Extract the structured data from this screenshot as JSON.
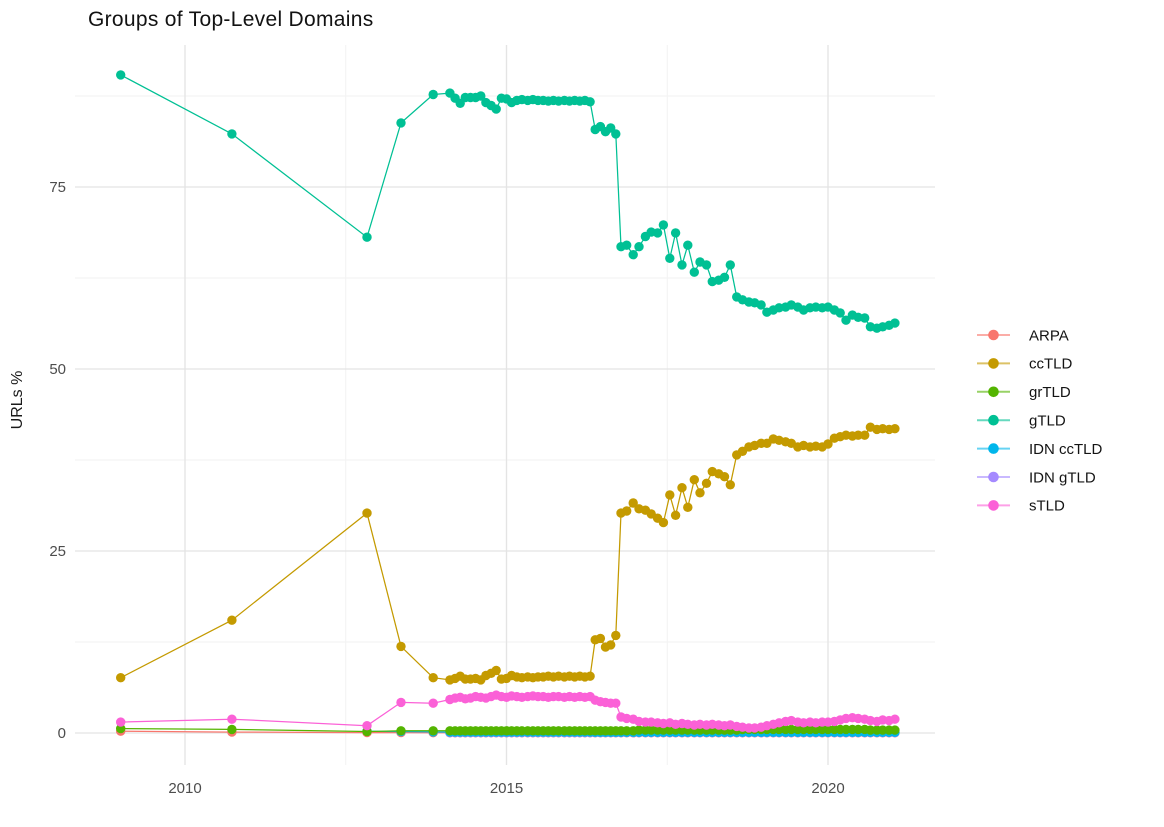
{
  "title": "Groups of Top-Level Domains",
  "y_axis": {
    "label": "URLs %",
    "ticks": [
      {
        "value": 0,
        "label": "0"
      },
      {
        "value": 25,
        "label": "25"
      },
      {
        "value": 50,
        "label": "50"
      },
      {
        "value": 75,
        "label": "75"
      }
    ],
    "minor": [
      12.5,
      37.5,
      62.5,
      87.5
    ]
  },
  "x_axis": {
    "ticks": [
      {
        "value": 2010,
        "label": "2010"
      },
      {
        "value": 2015,
        "label": "2015"
      },
      {
        "value": 2020,
        "label": "2020"
      }
    ],
    "minor": [
      2012.5,
      2017.5
    ]
  },
  "legend": {
    "position": "right",
    "items": [
      {
        "label": "ARPA",
        "color": "#F8766D"
      },
      {
        "label": "ccTLD",
        "color": "#C49A00"
      },
      {
        "label": "grTLD",
        "color": "#53B400"
      },
      {
        "label": "gTLD",
        "color": "#00C094"
      },
      {
        "label": "IDN ccTLD",
        "color": "#00B6EB"
      },
      {
        "label": "IDN gTLD",
        "color": "#A58AFF"
      },
      {
        "label": "sTLD",
        "color": "#FB61D7"
      }
    ]
  },
  "chart_data": {
    "type": "line",
    "title": "Groups of Top-Level Domains",
    "xlabel": "",
    "ylabel": "URLs %",
    "xlim": [
      2008.3,
      2021.7
    ],
    "ylim": [
      -4.5,
      94.5
    ],
    "grid": true,
    "legend_position": "right",
    "marker": "point",
    "x": [
      2009.0,
      2010.73,
      2012.83,
      2013.36,
      2013.86,
      2014.12,
      2014.2,
      2014.28,
      2014.36,
      2014.44,
      2014.52,
      2014.6,
      2014.68,
      2014.76,
      2014.84,
      2014.92,
      2015.0,
      2015.08,
      2015.16,
      2015.24,
      2015.33,
      2015.41,
      2015.49,
      2015.57,
      2015.65,
      2015.73,
      2015.81,
      2015.9,
      2015.98,
      2016.06,
      2016.14,
      2016.22,
      2016.3,
      2016.38,
      2016.46,
      2016.54,
      2016.62,
      2016.7,
      2016.78,
      2016.87,
      2016.97,
      2017.06,
      2017.16,
      2017.25,
      2017.35,
      2017.44,
      2017.54,
      2017.63,
      2017.73,
      2017.82,
      2017.92,
      2018.01,
      2018.11,
      2018.2,
      2018.3,
      2018.39,
      2018.48,
      2018.58,
      2018.67,
      2018.77,
      2018.86,
      2018.96,
      2019.05,
      2019.15,
      2019.24,
      2019.34,
      2019.43,
      2019.53,
      2019.62,
      2019.72,
      2019.81,
      2019.91,
      2020.0,
      2020.1,
      2020.19,
      2020.28,
      2020.38,
      2020.47,
      2020.57,
      2020.66,
      2020.76,
      2020.85,
      2020.95,
      2021.04
    ],
    "draw_order": [
      "ARPA",
      "IDN gTLD",
      "IDN ccTLD",
      "grTLD",
      "ccTLD",
      "gTLD",
      "sTLD"
    ],
    "series": [
      {
        "name": "ARPA",
        "color": "#F8766D",
        "values": [
          0.25,
          0.12,
          0.06,
          0.05,
          0.04,
          0.03,
          0.03,
          0.03,
          0.03,
          0.03,
          0.03,
          0.03,
          0.03,
          0.03,
          0.03,
          0.03,
          0.03,
          0.03,
          0.03,
          0.03,
          0.03,
          0.03,
          0.03,
          0.03,
          0.03,
          0.03,
          0.03,
          0.03,
          0.03,
          0.03,
          0.03,
          0.03,
          0.03,
          0.03,
          0.03,
          0.03,
          0.03,
          0.03,
          0.03,
          0.03,
          0.03,
          0.03,
          0.03,
          0.03,
          0.03,
          0.03,
          0.03,
          0.03,
          0.03,
          0.03,
          0.03,
          0.03,
          0.03,
          0.03,
          0.03,
          0.03,
          0.03,
          0.03,
          0.03,
          0.03,
          0.03,
          0.03,
          0.03,
          0.03,
          0.03,
          0.03,
          0.03,
          0.03,
          0.03,
          0.03,
          0.03,
          0.03,
          0.03,
          0.03,
          0.03,
          0.03,
          0.03,
          0.03,
          0.03,
          0.03,
          0.03,
          0.03,
          0.03,
          0.03
        ]
      },
      {
        "name": "ccTLD",
        "color": "#C49A00",
        "values": [
          7.6,
          15.5,
          30.2,
          11.9,
          7.6,
          7.3,
          7.5,
          7.8,
          7.4,
          7.4,
          7.5,
          7.3,
          7.9,
          8.2,
          8.6,
          7.4,
          7.5,
          7.9,
          7.7,
          7.6,
          7.7,
          7.6,
          7.7,
          7.7,
          7.8,
          7.7,
          7.8,
          7.7,
          7.8,
          7.7,
          7.8,
          7.7,
          7.8,
          12.8,
          13.0,
          11.8,
          12.1,
          13.4,
          30.2,
          30.5,
          31.6,
          30.8,
          30.6,
          30.1,
          29.5,
          28.9,
          32.7,
          29.9,
          33.7,
          31.0,
          34.8,
          33.0,
          34.3,
          35.9,
          35.6,
          35.2,
          34.1,
          38.2,
          38.7,
          39.3,
          39.5,
          39.8,
          39.8,
          40.4,
          40.2,
          40.0,
          39.8,
          39.3,
          39.5,
          39.3,
          39.4,
          39.3,
          39.7,
          40.5,
          40.7,
          40.9,
          40.8,
          40.9,
          40.9,
          42.0,
          41.7,
          41.8,
          41.7,
          41.8
        ]
      },
      {
        "name": "grTLD",
        "color": "#53B400",
        "values": [
          0.6,
          0.5,
          0.2,
          0.3,
          0.3,
          0.3,
          0.3,
          0.3,
          0.3,
          0.3,
          0.3,
          0.3,
          0.3,
          0.3,
          0.3,
          0.3,
          0.3,
          0.3,
          0.3,
          0.3,
          0.3,
          0.3,
          0.3,
          0.3,
          0.3,
          0.3,
          0.3,
          0.3,
          0.3,
          0.3,
          0.3,
          0.3,
          0.3,
          0.3,
          0.3,
          0.3,
          0.3,
          0.3,
          0.3,
          0.3,
          0.3,
          0.4,
          0.4,
          0.4,
          0.4,
          0.4,
          0.4,
          0.4,
          0.4,
          0.4,
          0.4,
          0.4,
          0.4,
          0.4,
          0.4,
          0.4,
          0.4,
          0.4,
          0.5,
          0.5,
          0.5,
          0.5,
          0.5,
          0.5,
          0.5,
          0.5,
          0.5,
          0.5,
          0.5,
          0.5,
          0.5,
          0.5,
          0.5,
          0.5,
          0.5,
          0.5,
          0.5,
          0.5,
          0.5,
          0.4,
          0.4,
          0.4,
          0.4,
          0.4
        ]
      },
      {
        "name": "gTLD",
        "color": "#00C094",
        "values": [
          90.4,
          82.3,
          68.1,
          83.8,
          87.7,
          87.9,
          87.2,
          86.5,
          87.3,
          87.3,
          87.3,
          87.5,
          86.6,
          86.2,
          85.7,
          87.2,
          87.1,
          86.6,
          86.9,
          87.0,
          86.9,
          87.0,
          86.9,
          86.9,
          86.8,
          86.9,
          86.8,
          86.9,
          86.8,
          86.9,
          86.8,
          86.9,
          86.7,
          82.9,
          83.3,
          82.6,
          83.1,
          82.3,
          66.8,
          67.0,
          65.7,
          66.8,
          68.2,
          68.8,
          68.7,
          69.8,
          65.2,
          68.7,
          64.3,
          67.0,
          63.3,
          64.7,
          64.3,
          62.0,
          62.2,
          62.6,
          64.3,
          59.9,
          59.5,
          59.2,
          59.1,
          58.8,
          57.8,
          58.1,
          58.4,
          58.5,
          58.8,
          58.5,
          58.1,
          58.4,
          58.5,
          58.4,
          58.5,
          58.1,
          57.7,
          56.7,
          57.4,
          57.1,
          57.0,
          55.8,
          55.6,
          55.8,
          56.0,
          56.3
        ]
      },
      {
        "name": "IDN ccTLD",
        "color": "#00B6EB",
        "values": [
          null,
          null,
          0.25,
          0.2,
          0.15,
          0.12,
          0.12,
          0.12,
          0.12,
          0.12,
          0.12,
          0.12,
          0.12,
          0.12,
          0.12,
          0.12,
          0.12,
          0.12,
          0.12,
          0.12,
          0.12,
          0.12,
          0.12,
          0.12,
          0.12,
          0.12,
          0.12,
          0.12,
          0.12,
          0.12,
          0.12,
          0.12,
          0.12,
          0.1,
          0.1,
          0.1,
          0.1,
          0.1,
          0.1,
          0.1,
          0.1,
          0.1,
          0.1,
          0.1,
          0.1,
          0.1,
          0.1,
          0.1,
          0.1,
          0.1,
          0.1,
          0.1,
          0.1,
          0.1,
          0.1,
          0.1,
          0.1,
          0.1,
          0.1,
          0.1,
          0.1,
          0.1,
          0.1,
          0.1,
          0.1,
          0.1,
          0.1,
          0.1,
          0.1,
          0.1,
          0.1,
          0.1,
          0.1,
          0.1,
          0.1,
          0.1,
          0.1,
          0.1,
          0.1,
          0.1,
          0.1,
          0.1,
          0.1,
          0.1
        ]
      },
      {
        "name": "IDN gTLD",
        "color": "#A58AFF",
        "values": [
          null,
          null,
          null,
          null,
          null,
          0.05,
          0.05,
          0.05,
          0.05,
          0.05,
          0.05,
          0.05,
          0.05,
          0.05,
          0.05,
          0.05,
          0.05,
          0.05,
          0.05,
          0.05,
          0.05,
          0.05,
          0.05,
          0.05,
          0.05,
          0.05,
          0.05,
          0.05,
          0.05,
          0.05,
          0.05,
          0.05,
          0.05,
          0.05,
          0.05,
          0.05,
          0.05,
          0.05,
          0.06,
          0.06,
          0.06,
          0.06,
          0.06,
          0.06,
          0.06,
          0.06,
          0.06,
          0.06,
          0.06,
          0.06,
          0.06,
          0.06,
          0.06,
          0.06,
          0.06,
          0.06,
          0.06,
          0.06,
          0.06,
          0.06,
          0.06,
          0.06,
          0.06,
          0.06,
          0.06,
          0.06,
          0.06,
          0.06,
          0.06,
          0.06,
          0.06,
          0.06,
          0.06,
          0.06,
          0.06,
          0.06,
          0.06,
          0.06,
          0.06,
          0.06,
          0.06,
          0.06,
          0.06,
          0.06
        ]
      },
      {
        "name": "sTLD",
        "color": "#FB61D7",
        "values": [
          1.5,
          1.9,
          1.0,
          4.2,
          4.1,
          4.6,
          4.8,
          4.9,
          4.7,
          4.8,
          5.0,
          4.9,
          4.8,
          5.0,
          5.2,
          5.0,
          4.9,
          5.1,
          5.0,
          4.9,
          5.0,
          5.1,
          5.0,
          5.0,
          4.9,
          5.0,
          5.0,
          4.9,
          5.0,
          4.9,
          5.0,
          4.9,
          5.0,
          4.5,
          4.3,
          4.2,
          4.1,
          4.1,
          2.2,
          2.0,
          1.9,
          1.6,
          1.5,
          1.5,
          1.4,
          1.3,
          1.4,
          1.2,
          1.3,
          1.2,
          1.1,
          1.2,
          1.1,
          1.2,
          1.1,
          1.0,
          1.1,
          0.9,
          0.8,
          0.7,
          0.7,
          0.8,
          1.0,
          1.2,
          1.4,
          1.6,
          1.7,
          1.5,
          1.4,
          1.5,
          1.4,
          1.5,
          1.5,
          1.6,
          1.8,
          2.0,
          2.1,
          2.0,
          1.9,
          1.7,
          1.6,
          1.8,
          1.7,
          1.9
        ]
      }
    ]
  }
}
